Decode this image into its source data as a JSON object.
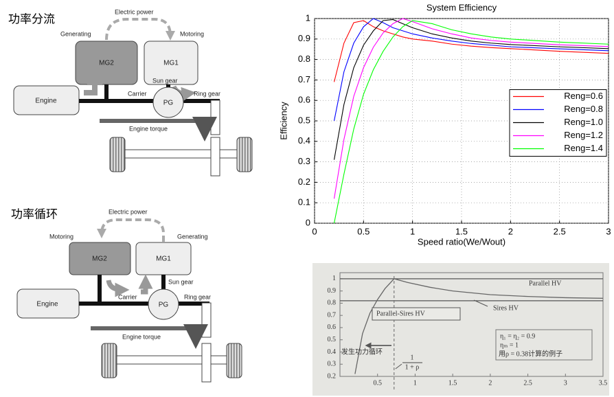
{
  "diagrams": [
    {
      "title": "功率分流",
      "electric_power": "Electric power",
      "generating": "Generating",
      "motoring": "Motoring",
      "mg2": "MG2",
      "mg1": "MG1",
      "sun_gear": "Sun gear",
      "engine": "Engine",
      "carrier": "Carrier",
      "pg": "PG",
      "ring_gear": "Ring gear",
      "engine_torque": "Engine torque"
    },
    {
      "title": "功率循环",
      "electric_power": "Electric power",
      "motoring": "Motoring",
      "generating": "Generating",
      "mg2": "MG2",
      "mg1": "MG1",
      "carrier": "Carrier",
      "sun_gear": "Sun gear",
      "engine": "Engine",
      "pg": "PG",
      "ring_gear": "Ring gear",
      "engine_torque": "Engine torque"
    }
  ],
  "chart_data": [
    {
      "type": "line",
      "title": "System Efficiency",
      "xlabel": "Speed ratio(We/Wout)",
      "ylabel": "Efficiency",
      "x": [
        0.2,
        0.3,
        0.4,
        0.5,
        0.6,
        0.7,
        0.8,
        0.9,
        1.0,
        1.2,
        1.4,
        1.6,
        1.8,
        2.0,
        2.5,
        3.0
      ],
      "series": [
        {
          "name": "Reng=0.6",
          "color": "#ff0000",
          "values": [
            0.69,
            0.88,
            0.98,
            0.99,
            0.96,
            0.94,
            0.925,
            0.91,
            0.9,
            0.89,
            0.875,
            0.865,
            0.858,
            0.853,
            0.84,
            0.83
          ]
        },
        {
          "name": "Reng=0.8",
          "color": "#0000ff",
          "values": [
            0.5,
            0.74,
            0.88,
            0.96,
            1.0,
            0.98,
            0.955,
            0.94,
            0.925,
            0.905,
            0.89,
            0.878,
            0.87,
            0.862,
            0.852,
            0.843
          ]
        },
        {
          "name": "Reng=1.0",
          "color": "#000000",
          "values": [
            0.31,
            0.58,
            0.76,
            0.87,
            0.94,
            0.99,
            0.995,
            0.975,
            0.955,
            0.925,
            0.905,
            0.89,
            0.88,
            0.873,
            0.862,
            0.853
          ]
        },
        {
          "name": "Reng=1.2",
          "color": "#ff00ff",
          "values": [
            0.12,
            0.41,
            0.62,
            0.76,
            0.86,
            0.93,
            0.975,
            1.0,
            0.985,
            0.95,
            0.925,
            0.905,
            0.893,
            0.885,
            0.872,
            0.863
          ]
        },
        {
          "name": "Reng=1.4",
          "color": "#00ff00",
          "values": [
            0.0,
            0.24,
            0.46,
            0.63,
            0.75,
            0.84,
            0.91,
            0.96,
            0.99,
            0.975,
            0.945,
            0.925,
            0.91,
            0.9,
            0.885,
            0.875
          ]
        }
      ],
      "xlim": [
        0,
        3
      ],
      "ylim": [
        0,
        1
      ],
      "xticks": [
        0,
        0.5,
        1,
        1.5,
        2,
        2.5,
        3
      ],
      "yticks": [
        0,
        0.1,
        0.2,
        0.3,
        0.4,
        0.5,
        0.6,
        0.7,
        0.8,
        0.9,
        1
      ],
      "grid": true,
      "legend": "right"
    },
    {
      "type": "line",
      "series": [
        {
          "name": "Parallel HV",
          "color": "#555555",
          "x": [
            0,
            3.5
          ],
          "values": [
            1,
            1
          ]
        },
        {
          "name": "Sires HV",
          "color": "#555555",
          "x": [
            0,
            3.5
          ],
          "values": [
            0.82,
            0.82
          ]
        },
        {
          "name": "Parallel-Sires HV",
          "color": "#666666",
          "x": [
            0.2,
            0.3,
            0.4,
            0.5,
            0.6,
            0.72,
            0.9,
            1.2,
            1.5,
            2,
            2.5,
            3,
            3.5
          ],
          "values": [
            0.22,
            0.55,
            0.72,
            0.83,
            0.92,
            1.0,
            0.97,
            0.93,
            0.9,
            0.87,
            0.855,
            0.845,
            0.84
          ]
        }
      ],
      "ref_x": 0.72,
      "ref_label_num": "1",
      "ref_label_den": "1 + ρ",
      "annotations": [
        "η₁ = η₂ = 0.9",
        "ηₘ = 1",
        "用ρ = 0.38计算的例子",
        "发生功力循环"
      ],
      "xlim": [
        0,
        3.5
      ],
      "ylim": [
        0.2,
        1.05
      ],
      "xticks": [
        0.5,
        1,
        1.5,
        2,
        2.5,
        3,
        3.5
      ],
      "yticks": [
        0.2,
        0.3,
        0.4,
        0.5,
        0.6,
        0.7,
        0.8,
        0.9,
        1
      ],
      "grid": false,
      "legend": "none"
    }
  ]
}
